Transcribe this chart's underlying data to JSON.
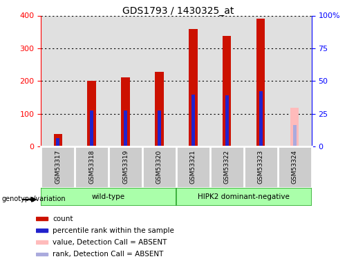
{
  "title": "GDS1793 / 1430325_at",
  "samples": [
    "GSM53317",
    "GSM53318",
    "GSM53319",
    "GSM53320",
    "GSM53321",
    "GSM53322",
    "GSM53323",
    "GSM53324"
  ],
  "count_values": [
    38,
    200,
    210,
    228,
    358,
    338,
    390,
    118
  ],
  "rank_values_pct": [
    6.25,
    27.5,
    27.5,
    27.5,
    39.5,
    38.75,
    42.0,
    16.25
  ],
  "absent": [
    false,
    false,
    false,
    false,
    false,
    false,
    false,
    true
  ],
  "groups": [
    {
      "label": "wild-type",
      "start": 0,
      "end": 3
    },
    {
      "label": "HIPK2 dominant-negative",
      "start": 4,
      "end": 7
    }
  ],
  "bar_color_present": "#cc1100",
  "bar_color_absent": "#ffbbbb",
  "rank_color_present": "#2222cc",
  "rank_color_absent": "#aaaadd",
  "ylim_left": [
    0,
    400
  ],
  "ylim_right": [
    0,
    100
  ],
  "yticks_left": [
    0,
    100,
    200,
    300,
    400
  ],
  "yticks_right": [
    0,
    25,
    50,
    75,
    100
  ],
  "yticklabels_right": [
    "0",
    "25",
    "50",
    "75",
    "100%"
  ],
  "bar_width": 0.25,
  "rank_bar_width": 0.1,
  "plot_bg": "#e0e0e0",
  "sample_box_bg": "#cccccc",
  "group_bg_light": "#aaffaa",
  "group_bg_dark": "#44dd44",
  "group_edge": "#33aa33",
  "legend_items": [
    {
      "label": "count",
      "color": "#cc1100"
    },
    {
      "label": "percentile rank within the sample",
      "color": "#2222cc"
    },
    {
      "label": "value, Detection Call = ABSENT",
      "color": "#ffbbbb"
    },
    {
      "label": "rank, Detection Call = ABSENT",
      "color": "#aaaadd"
    }
  ]
}
